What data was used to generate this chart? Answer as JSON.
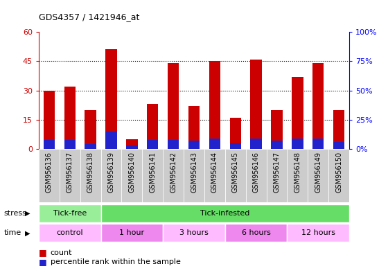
{
  "title": "GDS4357 / 1421946_at",
  "samples": [
    "GSM956136",
    "GSM956137",
    "GSM956138",
    "GSM956139",
    "GSM956140",
    "GSM956141",
    "GSM956142",
    "GSM956143",
    "GSM956144",
    "GSM956145",
    "GSM956146",
    "GSM956147",
    "GSM956148",
    "GSM956149",
    "GSM956150"
  ],
  "count_values": [
    30,
    32,
    20,
    51,
    5,
    23,
    44,
    22,
    45,
    16,
    46,
    20,
    37,
    44,
    20
  ],
  "percentile_values": [
    8,
    8,
    4,
    15,
    3,
    8,
    8,
    7,
    9,
    5,
    9,
    7,
    9,
    9,
    6
  ],
  "ylim_left": [
    0,
    60
  ],
  "ylim_right": [
    0,
    100
  ],
  "yticks_left": [
    0,
    15,
    30,
    45,
    60
  ],
  "yticks_right": [
    0,
    25,
    50,
    75,
    100
  ],
  "yticklabels_right": [
    "0%",
    "25%",
    "50%",
    "75%",
    "100%"
  ],
  "bar_color_red": "#cc0000",
  "bar_color_blue": "#2222cc",
  "bar_width": 0.55,
  "grid_color": "black",
  "stress_groups": [
    {
      "label": "Tick-free",
      "start": 0,
      "end": 3,
      "color": "#99ee99"
    },
    {
      "label": "Tick-infested",
      "start": 3,
      "end": 15,
      "color": "#66dd66"
    }
  ],
  "time_groups": [
    {
      "label": "control",
      "start": 0,
      "end": 3,
      "color": "#ffbbff"
    },
    {
      "label": "1 hour",
      "start": 3,
      "end": 6,
      "color": "#ee88ee"
    },
    {
      "label": "3 hours",
      "start": 6,
      "end": 9,
      "color": "#ffbbff"
    },
    {
      "label": "6 hours",
      "start": 9,
      "end": 12,
      "color": "#ee88ee"
    },
    {
      "label": "12 hours",
      "start": 12,
      "end": 15,
      "color": "#ffbbff"
    }
  ],
  "tick_bg_color": "#cccccc",
  "plot_bg": "#ffffff",
  "legend_red_label": "count",
  "legend_blue_label": "percentile rank within the sample",
  "stress_label": "stress",
  "time_label": "time"
}
